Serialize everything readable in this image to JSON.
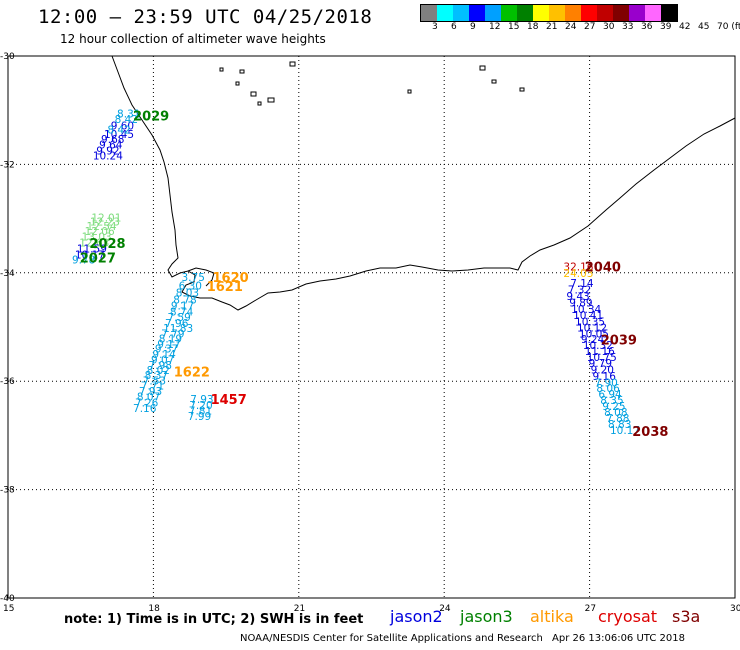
{
  "title": "12:00 – 23:59 UTC 04/25/2018",
  "subtitle": "12 hour collection of altimeter wave heights",
  "legend": {
    "labels": [
      "3",
      "6",
      "9",
      "12",
      "15",
      "18",
      "21",
      "24",
      "27",
      "30",
      "33",
      "36",
      "39",
      "42",
      "45",
      "70 (ft)"
    ],
    "colors": [
      "#808080",
      "#00ffff",
      "#00bfff",
      "#0000ff",
      "#00a0ff",
      "#00c000",
      "#008000",
      "#ffff00",
      "#ffc000",
      "#ff8000",
      "#ff0000",
      "#c00000",
      "#800000",
      "#9900cc",
      "#ff66ff",
      "#000000"
    ]
  },
  "axes": {
    "lat_labels": [
      "-30",
      "-32",
      "-34",
      "-36",
      "-38",
      "-40"
    ],
    "lon_labels": [
      "15",
      "18",
      "21",
      "24",
      "27",
      "30"
    ]
  },
  "note": "note: 1) Time is in UTC; 2) SWH is in feet",
  "satellites": [
    {
      "name": "jason2",
      "color": "#0000dd"
    },
    {
      "name": "jason3",
      "color": "#008000"
    },
    {
      "name": "altika",
      "color": "#ff9900"
    },
    {
      "name": "cryosat",
      "color": "#dd0000"
    },
    {
      "name": "s3a",
      "color": "#800000"
    }
  ],
  "credit": "NOAA/NESDIS Center for Satellite Applications and Research",
  "timestamp": "Apr 26 13:06:06 UTC 2018",
  "tracks": [
    {
      "id": "west-jason3",
      "color": "#7ddc7d",
      "points": [
        {
          "lon": 16.72,
          "lat": -32.98,
          "v": "12.01"
        },
        {
          "lon": 16.69,
          "lat": -33.05,
          "v": "12.23"
        },
        {
          "lon": 16.62,
          "lat": -33.14,
          "v": "12.54"
        },
        {
          "lon": 16.58,
          "lat": -33.23,
          "v": "12.06"
        },
        {
          "lon": 16.52,
          "lat": -33.33,
          "v": "13.03"
        },
        {
          "lon": 16.47,
          "lat": -33.44,
          "v": "12.63"
        }
      ]
    },
    {
      "id": "west-jason2",
      "color": "#0000dd",
      "points": [
        {
          "lon": 17.12,
          "lat": -31.28,
          "v": "9.60"
        },
        {
          "lon": 16.98,
          "lat": -31.44,
          "v": "10.45"
        },
        {
          "lon": 16.92,
          "lat": -31.53,
          "v": "9.68"
        },
        {
          "lon": 16.88,
          "lat": -31.63,
          "v": "9.64"
        },
        {
          "lon": 16.82,
          "lat": -31.74,
          "v": "9.92"
        },
        {
          "lon": 16.75,
          "lat": -31.84,
          "v": "10.24"
        },
        {
          "lon": 16.42,
          "lat": -33.55,
          "v": "11.59"
        },
        {
          "lon": 16.38,
          "lat": -33.66,
          "v": "10.17"
        }
      ]
    },
    {
      "id": "west-jason2-light",
      "color": "#00a0e0",
      "points": [
        {
          "lon": 17.25,
          "lat": -31.06,
          "v": "8.31"
        },
        {
          "lon": 17.2,
          "lat": -31.16,
          "v": "8.42"
        },
        {
          "lon": 17.05,
          "lat": -31.36,
          "v": "8.42"
        },
        {
          "lon": 16.32,
          "lat": -33.75,
          "v": "9.78"
        }
      ]
    },
    {
      "id": "capepoint-track",
      "color": "#00a0e0",
      "points": [
        {
          "lon": 18.58,
          "lat": -34.08,
          "v": "3.75"
        },
        {
          "lon": 18.52,
          "lat": -34.23,
          "v": "6.30"
        },
        {
          "lon": 18.46,
          "lat": -34.36,
          "v": "8.03"
        },
        {
          "lon": 18.41,
          "lat": -34.49,
          "v": "8.78"
        },
        {
          "lon": 18.36,
          "lat": -34.6,
          "v": "9.17"
        },
        {
          "lon": 18.34,
          "lat": -34.71,
          "v": "8.74"
        },
        {
          "lon": 18.29,
          "lat": -34.82,
          "v": "7.59"
        },
        {
          "lon": 18.24,
          "lat": -34.93,
          "v": "7.96"
        },
        {
          "lon": 18.2,
          "lat": -35.02,
          "v": "11.83"
        },
        {
          "lon": 18.16,
          "lat": -35.12,
          "v": "7.79"
        },
        {
          "lon": 18.11,
          "lat": -35.21,
          "v": "8.19"
        },
        {
          "lon": 18.08,
          "lat": -35.31,
          "v": "9.17"
        },
        {
          "lon": 18.03,
          "lat": -35.4,
          "v": "9.37"
        },
        {
          "lon": 17.98,
          "lat": -35.5,
          "v": "9.14"
        },
        {
          "lon": 17.95,
          "lat": -35.6,
          "v": "9.07"
        },
        {
          "lon": 17.9,
          "lat": -35.7,
          "v": "7.98"
        },
        {
          "lon": 17.86,
          "lat": -35.79,
          "v": "8.02"
        },
        {
          "lon": 17.82,
          "lat": -35.89,
          "v": "8.37"
        },
        {
          "lon": 17.78,
          "lat": -35.99,
          "v": "7.53"
        },
        {
          "lon": 17.74,
          "lat": -36.08,
          "v": "7.71"
        },
        {
          "lon": 17.7,
          "lat": -36.18,
          "v": "7.93"
        },
        {
          "lon": 17.66,
          "lat": -36.28,
          "v": "8.07"
        },
        {
          "lon": 17.62,
          "lat": -36.39,
          "v": "7.26"
        },
        {
          "lon": 17.58,
          "lat": -36.49,
          "v": "7.16"
        }
      ]
    },
    {
      "id": "cryosat-south",
      "color": "#00a0e0",
      "points": [
        {
          "lon": 18.76,
          "lat": -36.33,
          "v": "7.93"
        },
        {
          "lon": 18.74,
          "lat": -36.44,
          "v": "7.20"
        },
        {
          "lon": 18.73,
          "lat": -36.54,
          "v": "7.81"
        },
        {
          "lon": 18.71,
          "lat": -36.64,
          "v": "7.99"
        }
      ]
    },
    {
      "id": "east-track",
      "color": "#0000dd",
      "points": [
        {
          "lon": 26.6,
          "lat": -34.19,
          "v": "7.14"
        },
        {
          "lon": 26.55,
          "lat": -34.31,
          "v": "7.32"
        },
        {
          "lon": 26.52,
          "lat": -34.43,
          "v": "9.43"
        },
        {
          "lon": 26.58,
          "lat": -34.55,
          "v": "9.89"
        },
        {
          "lon": 26.62,
          "lat": -34.67,
          "v": "10.34"
        },
        {
          "lon": 26.66,
          "lat": -34.78,
          "v": "10.41"
        },
        {
          "lon": 26.7,
          "lat": -34.9,
          "v": "10.35"
        },
        {
          "lon": 26.74,
          "lat": -35.01,
          "v": "10.12"
        },
        {
          "lon": 26.78,
          "lat": -35.12,
          "v": "10.05"
        },
        {
          "lon": 26.82,
          "lat": -35.22,
          "v": "9.24"
        },
        {
          "lon": 26.86,
          "lat": -35.33,
          "v": "10.32"
        },
        {
          "lon": 26.9,
          "lat": -35.44,
          "v": "11.16"
        },
        {
          "lon": 26.94,
          "lat": -35.55,
          "v": "10.75"
        },
        {
          "lon": 26.98,
          "lat": -35.66,
          "v": "9.79"
        },
        {
          "lon": 27.02,
          "lat": -35.78,
          "v": "9.20"
        },
        {
          "lon": 27.06,
          "lat": -35.9,
          "v": "9.16"
        }
      ]
    },
    {
      "id": "east-track-light",
      "color": "#00a0e0",
      "points": [
        {
          "lon": 27.1,
          "lat": -36.02,
          "v": "7.90"
        },
        {
          "lon": 27.14,
          "lat": -36.13,
          "v": "8.06"
        },
        {
          "lon": 27.18,
          "lat": -36.24,
          "v": "6.94"
        },
        {
          "lon": 27.22,
          "lat": -36.35,
          "v": "8.35"
        },
        {
          "lon": 27.26,
          "lat": -36.46,
          "v": "9.25"
        },
        {
          "lon": 27.3,
          "lat": -36.57,
          "v": "8.08"
        },
        {
          "lon": 27.34,
          "lat": -36.68,
          "v": "7.88"
        },
        {
          "lon": 27.38,
          "lat": -36.79,
          "v": "8.83"
        },
        {
          "lon": 27.42,
          "lat": -36.9,
          "v": "10.17"
        }
      ]
    },
    {
      "id": "east-s3a-top",
      "color": "#c00000",
      "points": [
        {
          "lon": 26.46,
          "lat": -33.88,
          "v": "32.16"
        }
      ]
    },
    {
      "id": "east-altika-top",
      "color": "#ffc000",
      "points": [
        {
          "lon": 26.46,
          "lat": -34.0,
          "v": "24.03"
        }
      ]
    }
  ],
  "pass_labels": [
    {
      "text": "2029",
      "color": "#008000",
      "lon": 17.58,
      "lat": -31.1
    },
    {
      "text": "2028",
      "color": "#008000",
      "lon": 16.68,
      "lat": -33.45
    },
    {
      "text": "2027",
      "color": "#008000",
      "lon": 16.48,
      "lat": -33.72
    },
    {
      "text": "1620",
      "color": "#ff9900",
      "lon": 19.22,
      "lat": -34.08
    },
    {
      "text": "1621",
      "color": "#ff9900",
      "lon": 19.1,
      "lat": -34.24
    },
    {
      "text": "1622",
      "color": "#ff9900",
      "lon": 18.42,
      "lat": -35.82
    },
    {
      "text": "1457",
      "color": "#dd0000",
      "lon": 19.18,
      "lat": -36.33
    },
    {
      "text": "2040",
      "color": "#800000",
      "lon": 26.9,
      "lat": -33.88
    },
    {
      "text": "2039",
      "color": "#800000",
      "lon": 27.23,
      "lat": -35.23
    },
    {
      "text": "2038",
      "color": "#800000",
      "lon": 27.88,
      "lat": -36.92
    }
  ]
}
